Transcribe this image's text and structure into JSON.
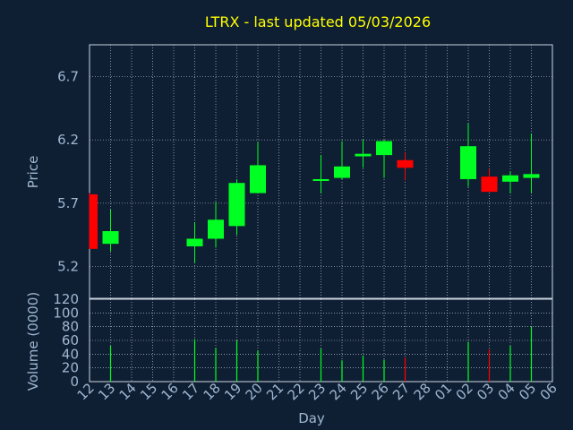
{
  "colors": {
    "background": "#0f1f33",
    "panel": "#0f1f33",
    "grid": "#d8dde6",
    "up": "#00ff22",
    "down": "#ff0000",
    "title": "#ffff00",
    "axis_text": "#9fb7d1"
  },
  "chart_data": [
    {
      "type": "candlestick",
      "title": "LTRX - last updated 05/03/2026",
      "xlabel": "",
      "ylabel": "Price",
      "ylim": [
        4.95,
        6.95
      ],
      "yticks": [
        5.2,
        5.7,
        6.2,
        6.7
      ],
      "grid": true,
      "categories": [
        "12",
        "13",
        "14",
        "15",
        "16",
        "17",
        "18",
        "19",
        "20",
        "21",
        "22",
        "23",
        "24",
        "25",
        "26",
        "27",
        "28",
        "01",
        "02",
        "03",
        "04",
        "05",
        "06"
      ],
      "candles": [
        {
          "day": "12",
          "open": 5.77,
          "high": 5.78,
          "low": 5.34,
          "close": 5.34
        },
        {
          "day": "13",
          "open": 5.38,
          "high": 5.65,
          "low": 5.32,
          "close": 5.48
        },
        {
          "day": "17",
          "open": 5.36,
          "high": 5.55,
          "low": 5.23,
          "close": 5.42
        },
        {
          "day": "18",
          "open": 5.42,
          "high": 5.71,
          "low": 5.35,
          "close": 5.57
        },
        {
          "day": "19",
          "open": 5.52,
          "high": 5.89,
          "low": 5.45,
          "close": 5.86
        },
        {
          "day": "20",
          "open": 5.78,
          "high": 6.18,
          "low": 5.78,
          "close": 6.0
        },
        {
          "day": "23",
          "open": 5.88,
          "high": 6.08,
          "low": 5.78,
          "close": 5.89
        },
        {
          "day": "24",
          "open": 5.9,
          "high": 6.19,
          "low": 5.89,
          "close": 5.99
        },
        {
          "day": "25",
          "open": 6.07,
          "high": 6.2,
          "low": 5.98,
          "close": 6.09
        },
        {
          "day": "26",
          "open": 6.08,
          "high": 6.2,
          "low": 5.9,
          "close": 6.19
        },
        {
          "day": "27",
          "open": 6.04,
          "high": 6.1,
          "low": 5.88,
          "close": 5.98
        },
        {
          "day": "02",
          "open": 5.89,
          "high": 6.33,
          "low": 5.83,
          "close": 6.15
        },
        {
          "day": "03",
          "open": 5.91,
          "high": 5.97,
          "low": 5.79,
          "close": 5.79
        },
        {
          "day": "04",
          "open": 5.87,
          "high": 5.95,
          "low": 5.78,
          "close": 5.92
        },
        {
          "day": "05",
          "open": 5.9,
          "high": 6.25,
          "low": 5.78,
          "close": 5.93
        }
      ]
    },
    {
      "type": "bar",
      "xlabel": "Day",
      "ylabel": "Volume (0000)",
      "ylim": [
        0,
        120
      ],
      "yticks": [
        0,
        20,
        40,
        60,
        80,
        100,
        120
      ],
      "grid": true,
      "categories": [
        "12",
        "13",
        "14",
        "15",
        "16",
        "17",
        "18",
        "19",
        "20",
        "21",
        "22",
        "23",
        "24",
        "25",
        "26",
        "27",
        "28",
        "01",
        "02",
        "03",
        "04",
        "05",
        "06"
      ],
      "volumes": [
        {
          "day": "13",
          "value": 52,
          "direction": "up"
        },
        {
          "day": "17",
          "value": 62,
          "direction": "up"
        },
        {
          "day": "18",
          "value": 49,
          "direction": "up"
        },
        {
          "day": "19",
          "value": 60,
          "direction": "up"
        },
        {
          "day": "20",
          "value": 45,
          "direction": "up"
        },
        {
          "day": "23",
          "value": 48,
          "direction": "up"
        },
        {
          "day": "24",
          "value": 31,
          "direction": "up"
        },
        {
          "day": "25",
          "value": 38,
          "direction": "up"
        },
        {
          "day": "26",
          "value": 32,
          "direction": "up"
        },
        {
          "day": "27",
          "value": 35,
          "direction": "down"
        },
        {
          "day": "02",
          "value": 58,
          "direction": "up"
        },
        {
          "day": "03",
          "value": 47,
          "direction": "down"
        },
        {
          "day": "04",
          "value": 52,
          "direction": "up"
        },
        {
          "day": "05",
          "value": 80,
          "direction": "up"
        }
      ]
    }
  ]
}
